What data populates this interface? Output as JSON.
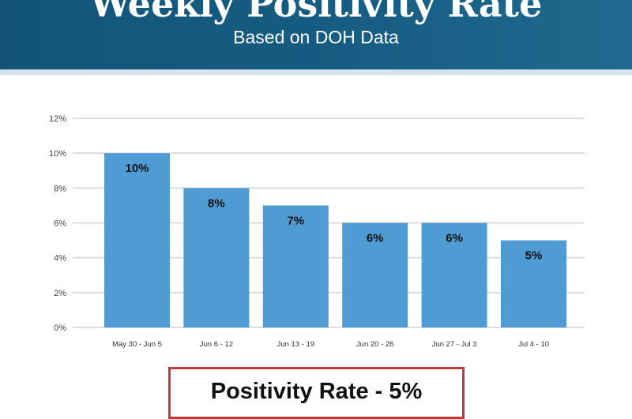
{
  "header": {
    "title": "Weekly Positivity Rate",
    "subtitle": "Based on DOH Data"
  },
  "colors": {
    "header": "#155a7e",
    "bar": "#4f9bd4",
    "box_border": "#c0393b"
  },
  "chart_data": {
    "type": "bar",
    "title": "",
    "xlabel": "",
    "ylabel": "",
    "categories": [
      "May 30 - Jun 5",
      "Jun 6 - 12",
      "Jun 13 - 19",
      "Jun 20 - 26",
      "Jun 27 - Jul 3",
      "Jul 4 - 10"
    ],
    "values": [
      10,
      8,
      7,
      6,
      6,
      5
    ],
    "data_labels": [
      "10%",
      "8%",
      "7%",
      "6%",
      "6%",
      "5%"
    ],
    "yticks": [
      0,
      2,
      4,
      6,
      8,
      10,
      12
    ],
    "ytick_labels": [
      "0%",
      "2%",
      "4%",
      "6%",
      "8%",
      "10%",
      "12%"
    ],
    "ylim": [
      0,
      12
    ],
    "grid": true
  },
  "summary": {
    "text": "Positivity Rate - 5%"
  }
}
